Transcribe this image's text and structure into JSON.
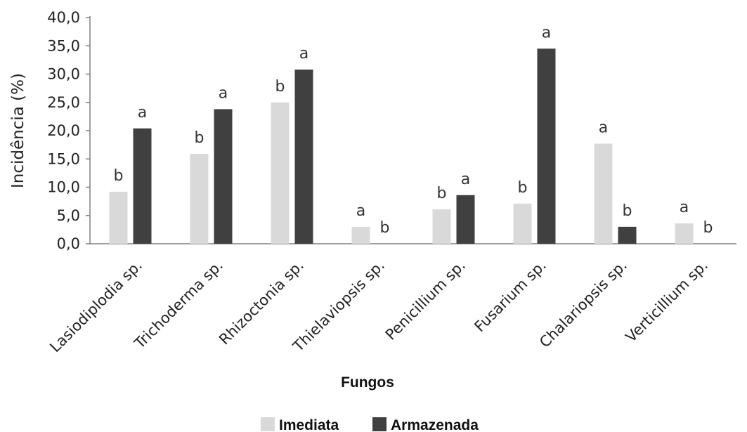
{
  "chart_data": {
    "type": "bar",
    "ylabel": "Incidência (%)",
    "xlabel": "Fungos",
    "ylim": [
      0,
      40
    ],
    "yticks": [
      "0,0",
      "5,0",
      "10,0",
      "15,0",
      "20,0",
      "25,0",
      "30,0",
      "35,0",
      "40,0"
    ],
    "grid": false,
    "legend_position": "bottom",
    "categories": [
      "Lasiodiplodia sp.",
      "Trichoderma sp.",
      "Rhizoctonia sp.",
      "Thielaviopsis sp.",
      "Penicillium sp.",
      "Fusarium sp.",
      "Chalariopsis sp.",
      "Verticillium sp."
    ],
    "series": [
      {
        "name": "Imediata",
        "color": "#d9d9d9",
        "values": [
          9.2,
          15.9,
          25.0,
          3.0,
          6.1,
          7.1,
          17.7,
          3.6
        ],
        "letters": [
          "b",
          "b",
          "b",
          "a",
          "b",
          "b",
          "a",
          "a"
        ]
      },
      {
        "name": "Armazenada",
        "color": "#404040",
        "values": [
          20.4,
          23.8,
          30.8,
          0,
          8.6,
          34.5,
          3.0,
          0
        ],
        "letters": [
          "a",
          "a",
          "a",
          "b",
          "a",
          "a",
          "b",
          "b"
        ]
      }
    ]
  }
}
